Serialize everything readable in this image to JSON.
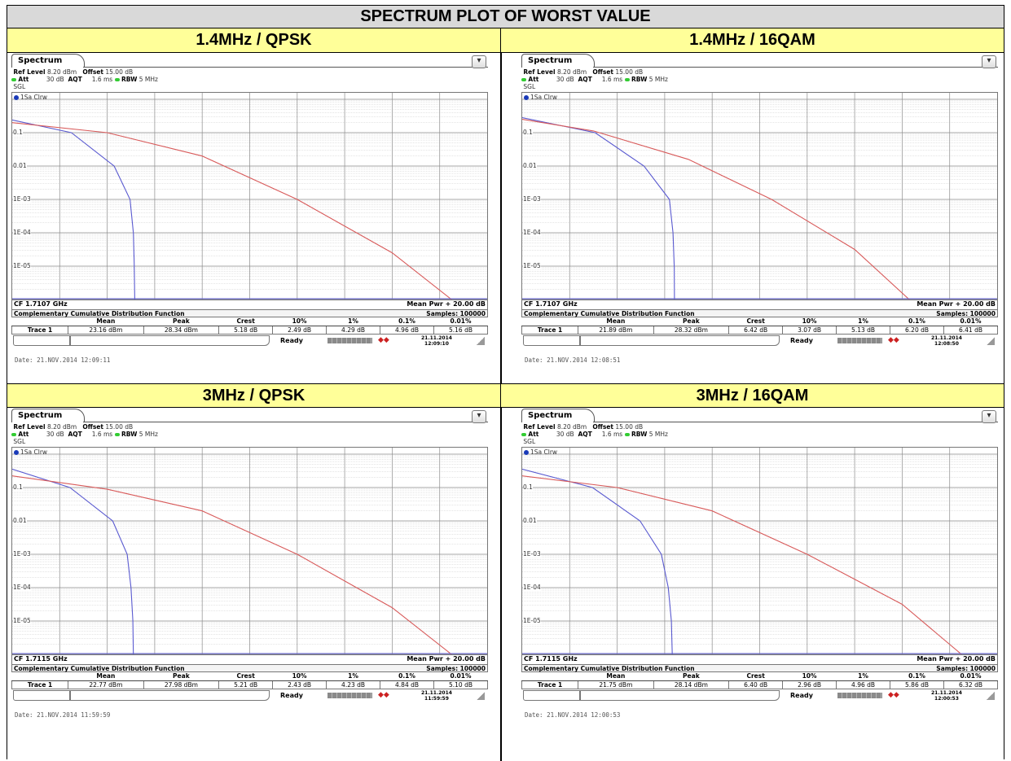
{
  "title": "SPECTRUM PLOT OF WORST VALUE",
  "cells": [
    {
      "caption": "1.4MHz / QPSK",
      "tab": "Spectrum",
      "ref_level": "8.20 dBm",
      "offset": "15.00 dB",
      "att": "30 dB",
      "aqt": "1.6 ms",
      "rbw": "5 MHz",
      "mode": "SGL",
      "trace_label": "1Sa Clrw",
      "cf": "CF 1.7107 GHz",
      "mean_pwr": "Mean Pwr + 20.00 dB",
      "ccdf_title": "Complementary Cumulative Distribution Function",
      "samples": "Samples: 100000",
      "col_headers": [
        "Mean",
        "Peak",
        "Crest",
        "10%",
        "1%",
        "0.1%",
        "0.01%"
      ],
      "trace_name": "Trace 1",
      "values": [
        "23.16 dBm",
        "28.34 dBm",
        "5.18 dB",
        "2.49 dB",
        "4.29 dB",
        "4.96 dB",
        "5.16 dB"
      ],
      "status": "Ready",
      "clock_date": "21.11.2014",
      "clock_time": "12:09:10",
      "footer": "Date: 21.NOV.2014  12:09:11",
      "y_ticks": [
        "0.1",
        "0.01",
        "1E-03",
        "1E-04",
        "1E-05"
      ],
      "chart_data": {
        "type": "line",
        "x_range_db": [
          0,
          20
        ],
        "ylim_log10": [
          -6,
          0
        ],
        "series": [
          {
            "color": "#5a5ad0",
            "points": [
              [
                0,
                -0.62
              ],
              [
                2.49,
                -1.0
              ],
              [
                4.29,
                -2.0
              ],
              [
                4.96,
                -3.0
              ],
              [
                5.1,
                -4.0
              ],
              [
                5.14,
                -5.0
              ],
              [
                5.16,
                -6.0
              ]
            ]
          },
          {
            "color": "#d85a5a",
            "points": [
              [
                0,
                -0.7
              ],
              [
                4,
                -1.0
              ],
              [
                8,
                -1.7
              ],
              [
                12,
                -3.0
              ],
              [
                16,
                -4.6
              ],
              [
                18.5,
                -6.0
              ]
            ]
          }
        ]
      }
    },
    {
      "caption": "1.4MHz / 16QAM",
      "tab": "Spectrum",
      "ref_level": "8.20 dBm",
      "offset": "15.00 dB",
      "att": "30 dB",
      "aqt": "1.6 ms",
      "rbw": "5 MHz",
      "mode": "SGL",
      "trace_label": "1Sa Clrw",
      "cf": "CF 1.7107 GHz",
      "mean_pwr": "Mean Pwr + 20.00 dB",
      "ccdf_title": "Complementary Cumulative Distribution Function",
      "samples": "Samples: 100000",
      "col_headers": [
        "Mean",
        "Peak",
        "Crest",
        "10%",
        "1%",
        "0.1%",
        "0.01%"
      ],
      "trace_name": "Trace 1",
      "values": [
        "21.89 dBm",
        "28.32 dBm",
        "6.42 dB",
        "3.07 dB",
        "5.13 dB",
        "6.20 dB",
        "6.41 dB"
      ],
      "status": "Ready",
      "clock_date": "21.11.2014",
      "clock_time": "12:08:50",
      "footer": "Date: 21.NOV.2014  12:08:51",
      "y_ticks": [
        "0.1",
        "0.01",
        "1E-03",
        "1E-04",
        "1E-05"
      ],
      "chart_data": {
        "type": "line",
        "x_range_db": [
          0,
          20
        ],
        "ylim_log10": [
          -6,
          0
        ],
        "series": [
          {
            "color": "#5a5ad0",
            "points": [
              [
                0,
                -0.55
              ],
              [
                3.07,
                -1.0
              ],
              [
                5.13,
                -2.0
              ],
              [
                6.2,
                -3.0
              ],
              [
                6.35,
                -4.0
              ],
              [
                6.4,
                -5.0
              ],
              [
                6.41,
                -6.0
              ]
            ]
          },
          {
            "color": "#d85a5a",
            "points": [
              [
                0,
                -0.6
              ],
              [
                3,
                -0.95
              ],
              [
                7,
                -1.8
              ],
              [
                10.5,
                -3.0
              ],
              [
                14,
                -4.5
              ],
              [
                16.3,
                -6.0
              ]
            ]
          }
        ]
      }
    },
    {
      "caption": "3MHz / QPSK",
      "tab": "Spectrum",
      "ref_level": "8.20 dBm",
      "offset": "15.00 dB",
      "att": "30 dB",
      "aqt": "1.6 ms",
      "rbw": "5 MHz",
      "mode": "SGL",
      "trace_label": "1Sa Clrw",
      "cf": "CF 1.7115 GHz",
      "mean_pwr": "Mean Pwr + 20.00 dB",
      "ccdf_title": "Complementary Cumulative Distribution Function",
      "samples": "Samples: 100000",
      "col_headers": [
        "Mean",
        "Peak",
        "Crest",
        "10%",
        "1%",
        "0.1%",
        "0.01%"
      ],
      "trace_name": "Trace 1",
      "values": [
        "22.77 dBm",
        "27.98 dBm",
        "5.21 dB",
        "2.43 dB",
        "4.23 dB",
        "4.84 dB",
        "5.10 dB"
      ],
      "status": "Ready",
      "clock_date": "21.11.2014",
      "clock_time": "11:59:59",
      "footer": "Date: 21.NOV.2014  11:59:59",
      "y_ticks": [
        "0.1",
        "0.01",
        "1E-03",
        "1E-04",
        "1E-05"
      ],
      "chart_data": {
        "type": "line",
        "x_range_db": [
          0,
          20
        ],
        "ylim_log10": [
          -6,
          0
        ],
        "series": [
          {
            "color": "#5a5ad0",
            "points": [
              [
                0,
                -0.45
              ],
              [
                2.43,
                -1.0
              ],
              [
                4.23,
                -2.0
              ],
              [
                4.84,
                -3.0
              ],
              [
                5.0,
                -4.0
              ],
              [
                5.08,
                -5.0
              ],
              [
                5.1,
                -6.0
              ]
            ]
          },
          {
            "color": "#d85a5a",
            "points": [
              [
                0,
                -0.65
              ],
              [
                4,
                -1.05
              ],
              [
                8,
                -1.7
              ],
              [
                12,
                -3.0
              ],
              [
                16,
                -4.6
              ],
              [
                18.5,
                -6.0
              ]
            ]
          }
        ]
      }
    },
    {
      "caption": "3MHz / 16QAM",
      "tab": "Spectrum",
      "ref_level": "8.20 dBm",
      "offset": "15.00 dB",
      "att": "30 dB",
      "aqt": "1.6 ms",
      "rbw": "5 MHz",
      "mode": "SGL",
      "trace_label": "1Sa Clrw",
      "cf": "CF 1.7115 GHz",
      "mean_pwr": "Mean Pwr + 20.00 dB",
      "ccdf_title": "Complementary Cumulative Distribution Function",
      "samples": "Samples: 100000",
      "col_headers": [
        "Mean",
        "Peak",
        "Crest",
        "10%",
        "1%",
        "0.1%",
        "0.01%"
      ],
      "trace_name": "Trace 1",
      "values": [
        "21.75 dBm",
        "28.14 dBm",
        "6.40 dB",
        "2.96 dB",
        "4.96 dB",
        "5.86 dB",
        "6.32 dB"
      ],
      "status": "Ready",
      "clock_date": "21.11.2014",
      "clock_time": "12:00:53",
      "footer": "Date: 21.NOV.2014  12:00:53",
      "y_ticks": [
        "0.1",
        "0.01",
        "1E-03",
        "1E-04",
        "1E-05"
      ],
      "chart_data": {
        "type": "line",
        "x_range_db": [
          0,
          20
        ],
        "ylim_log10": [
          -6,
          0
        ],
        "series": [
          {
            "color": "#5a5ad0",
            "points": [
              [
                0,
                -0.45
              ],
              [
                2.96,
                -1.0
              ],
              [
                4.96,
                -2.0
              ],
              [
                5.86,
                -3.0
              ],
              [
                6.15,
                -4.0
              ],
              [
                6.28,
                -5.0
              ],
              [
                6.32,
                -6.0
              ]
            ]
          },
          {
            "color": "#d85a5a",
            "points": [
              [
                0,
                -0.65
              ],
              [
                4,
                -1.0
              ],
              [
                8,
                -1.7
              ],
              [
                12,
                -3.0
              ],
              [
                16,
                -4.5
              ],
              [
                18.5,
                -6.0
              ]
            ]
          }
        ]
      }
    }
  ]
}
